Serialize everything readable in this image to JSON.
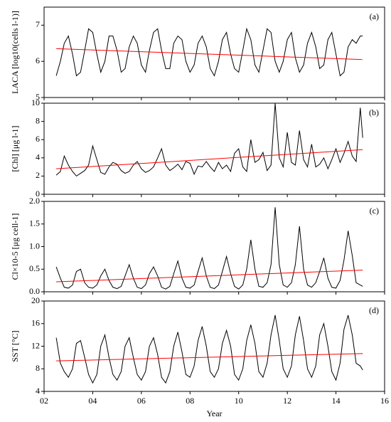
{
  "chart_data": [
    {
      "type": "line",
      "annotation": "(a)",
      "y_label": "LACA [log10(cells l-1)]",
      "x": [
        2.5,
        2.67,
        2.83,
        3,
        3.17,
        3.33,
        3.5,
        3.67,
        3.83,
        4,
        4.17,
        4.33,
        4.5,
        4.67,
        4.83,
        5,
        5.17,
        5.33,
        5.5,
        5.67,
        5.83,
        6,
        6.17,
        6.33,
        6.5,
        6.67,
        6.83,
        7,
        7.17,
        7.33,
        7.5,
        7.67,
        7.83,
        8,
        8.17,
        8.33,
        8.5,
        8.67,
        8.83,
        9,
        9.17,
        9.33,
        9.5,
        9.67,
        9.83,
        10,
        10.17,
        10.33,
        10.5,
        10.67,
        10.83,
        11,
        11.17,
        11.33,
        11.5,
        11.67,
        11.83,
        12,
        12.17,
        12.33,
        12.5,
        12.67,
        12.83,
        13,
        13.17,
        13.33,
        13.5,
        13.67,
        13.83,
        14,
        14.17,
        14.33,
        14.5,
        14.67,
        14.83,
        15,
        15.1
      ],
      "series": [
        {
          "color": "#000000",
          "values": [
            5.6,
            6.0,
            6.5,
            6.7,
            6.2,
            5.6,
            5.7,
            6.3,
            6.9,
            6.8,
            6.2,
            5.7,
            6.0,
            6.7,
            6.7,
            6.3,
            5.7,
            5.8,
            6.4,
            6.7,
            6.5,
            5.9,
            5.7,
            6.3,
            6.8,
            6.9,
            6.3,
            5.8,
            5.8,
            6.5,
            6.7,
            6.6,
            6.0,
            5.7,
            5.9,
            6.5,
            6.7,
            6.4,
            5.8,
            5.6,
            6.0,
            6.6,
            6.8,
            6.2,
            5.8,
            5.7,
            6.3,
            6.9,
            6.6,
            5.9,
            5.7,
            6.3,
            6.9,
            6.8,
            6.0,
            5.7,
            6.0,
            6.6,
            6.8,
            6.1,
            5.7,
            5.9,
            6.5,
            6.8,
            6.4,
            5.8,
            5.9,
            6.6,
            6.8,
            6.2,
            5.6,
            5.7,
            6.4,
            6.6,
            6.5,
            6.7,
            6.7
          ]
        },
        {
          "color": "#ff0000",
          "x": [
            2.5,
            15.1
          ],
          "values": [
            6.35,
            6.05
          ]
        }
      ],
      "xlim": [
        2,
        16
      ],
      "xticks": [
        2,
        4,
        6,
        8,
        10,
        12,
        14,
        16
      ],
      "ylim": [
        5,
        7.5
      ],
      "yticks": [
        5,
        6,
        7
      ]
    },
    {
      "type": "line",
      "annotation": "(b)",
      "y_label": "[Chl] [μg l-1]",
      "x": [
        2.5,
        2.67,
        2.83,
        3,
        3.17,
        3.33,
        3.5,
        3.67,
        3.83,
        4,
        4.17,
        4.33,
        4.5,
        4.67,
        4.83,
        5,
        5.17,
        5.33,
        5.5,
        5.67,
        5.83,
        6,
        6.17,
        6.33,
        6.5,
        6.67,
        6.83,
        7,
        7.17,
        7.33,
        7.5,
        7.67,
        7.83,
        8,
        8.17,
        8.33,
        8.5,
        8.67,
        8.83,
        9,
        9.17,
        9.33,
        9.5,
        9.67,
        9.83,
        10,
        10.17,
        10.33,
        10.5,
        10.67,
        10.83,
        11,
        11.17,
        11.33,
        11.5,
        11.67,
        11.83,
        12,
        12.17,
        12.33,
        12.5,
        12.67,
        12.83,
        13,
        13.17,
        13.33,
        13.5,
        13.67,
        13.83,
        14,
        14.17,
        14.33,
        14.5,
        14.67,
        14.83,
        15,
        15.1
      ],
      "series": [
        {
          "color": "#000000",
          "values": [
            2.1,
            2.5,
            4.2,
            3.2,
            2.5,
            2.0,
            2.3,
            2.6,
            3.2,
            5.3,
            3.8,
            2.4,
            2.2,
            3.0,
            3.5,
            3.3,
            2.6,
            2.3,
            2.5,
            3.2,
            3.6,
            2.8,
            2.4,
            2.6,
            3.0,
            4.0,
            5.0,
            3.2,
            2.6,
            2.9,
            3.3,
            2.7,
            3.6,
            3.4,
            2.2,
            3.1,
            3.0,
            3.6,
            3.0,
            2.5,
            3.5,
            2.8,
            3.2,
            2.5,
            4.5,
            5.0,
            3.0,
            2.5,
            6.0,
            3.5,
            3.8,
            4.6,
            2.6,
            3.2,
            10.0,
            4.0,
            3.0,
            6.8,
            3.5,
            3.2,
            7.0,
            3.8,
            3.0,
            5.5,
            3.0,
            3.3,
            4.0,
            2.8,
            3.8,
            5.0,
            3.5,
            4.5,
            5.8,
            4.2,
            3.6,
            9.5,
            6.2
          ]
        },
        {
          "color": "#ff0000",
          "x": [
            2.5,
            15.1
          ],
          "values": [
            2.8,
            4.9
          ]
        }
      ],
      "xlim": [
        2,
        16
      ],
      "xticks": [
        2,
        4,
        6,
        8,
        10,
        12,
        14,
        16
      ],
      "ylim": [
        0,
        10
      ],
      "yticks": [
        0,
        2,
        4,
        6,
        8,
        10
      ]
    },
    {
      "type": "line",
      "annotation": "(c)",
      "y_label": "Cl×10-5 [μg cell-1]",
      "x": [
        2.5,
        2.67,
        2.83,
        3,
        3.17,
        3.33,
        3.5,
        3.67,
        3.83,
        4,
        4.17,
        4.33,
        4.5,
        4.67,
        4.83,
        5,
        5.17,
        5.33,
        5.5,
        5.67,
        5.83,
        6,
        6.17,
        6.33,
        6.5,
        6.67,
        6.83,
        7,
        7.17,
        7.33,
        7.5,
        7.67,
        7.83,
        8,
        8.17,
        8.33,
        8.5,
        8.67,
        8.83,
        9,
        9.17,
        9.33,
        9.5,
        9.67,
        9.83,
        10,
        10.17,
        10.33,
        10.5,
        10.67,
        10.83,
        11,
        11.17,
        11.33,
        11.5,
        11.67,
        11.83,
        12,
        12.17,
        12.33,
        12.5,
        12.67,
        12.83,
        13,
        13.17,
        13.33,
        13.5,
        13.67,
        13.83,
        14,
        14.17,
        14.33,
        14.5,
        14.67,
        14.83,
        15,
        15.1
      ],
      "series": [
        {
          "color": "#000000",
          "values": [
            0.55,
            0.3,
            0.1,
            0.08,
            0.15,
            0.45,
            0.5,
            0.2,
            0.1,
            0.08,
            0.15,
            0.35,
            0.5,
            0.25,
            0.1,
            0.07,
            0.12,
            0.35,
            0.6,
            0.3,
            0.1,
            0.07,
            0.15,
            0.4,
            0.55,
            0.35,
            0.1,
            0.06,
            0.12,
            0.4,
            0.68,
            0.3,
            0.1,
            0.08,
            0.15,
            0.45,
            0.75,
            0.35,
            0.1,
            0.07,
            0.15,
            0.45,
            0.78,
            0.4,
            0.12,
            0.06,
            0.15,
            0.5,
            1.15,
            0.5,
            0.12,
            0.1,
            0.2,
            0.6,
            1.87,
            0.6,
            0.15,
            0.1,
            0.2,
            0.6,
            1.45,
            0.5,
            0.15,
            0.1,
            0.2,
            0.45,
            0.75,
            0.3,
            0.1,
            0.08,
            0.25,
            0.7,
            1.35,
            0.8,
            0.2,
            0.15,
            0.12
          ]
        },
        {
          "color": "#ff0000",
          "x": [
            2.5,
            15.1
          ],
          "values": [
            0.22,
            0.48
          ]
        }
      ],
      "xlim": [
        2,
        16
      ],
      "xticks": [
        2,
        4,
        6,
        8,
        10,
        12,
        14,
        16
      ],
      "ylim": [
        0,
        2
      ],
      "yticks": [
        {
          "value": 0,
          "label": "0.0"
        },
        {
          "value": 0.5,
          "label": "0.5"
        },
        {
          "value": 1,
          "label": "1.0"
        },
        {
          "value": 1.5,
          "label": "1.5"
        },
        {
          "value": 2,
          "label": "2.0"
        }
      ]
    },
    {
      "type": "line",
      "annotation": "(d)",
      "y_label": "SST [°C]",
      "x_label": "Year",
      "x": [
        2.5,
        2.67,
        2.83,
        3,
        3.17,
        3.33,
        3.5,
        3.67,
        3.83,
        4,
        4.17,
        4.33,
        4.5,
        4.67,
        4.83,
        5,
        5.17,
        5.33,
        5.5,
        5.67,
        5.83,
        6,
        6.17,
        6.33,
        6.5,
        6.67,
        6.83,
        7,
        7.17,
        7.33,
        7.5,
        7.67,
        7.83,
        8,
        8.17,
        8.33,
        8.5,
        8.67,
        8.83,
        9,
        9.17,
        9.33,
        9.5,
        9.67,
        9.83,
        10,
        10.17,
        10.33,
        10.5,
        10.67,
        10.83,
        11,
        11.17,
        11.33,
        11.5,
        11.67,
        11.83,
        12,
        12.17,
        12.33,
        12.5,
        12.67,
        12.83,
        13,
        13.17,
        13.33,
        13.5,
        13.67,
        13.83,
        14,
        14.17,
        14.33,
        14.5,
        14.67,
        14.83,
        15,
        15.1
      ],
      "series": [
        {
          "color": "#000000",
          "values": [
            13.5,
            9,
            7.5,
            6.5,
            8,
            12.5,
            13,
            10,
            7,
            5.5,
            7,
            12,
            14,
            10,
            7,
            6,
            7.5,
            12,
            13.5,
            10,
            7,
            6,
            7.5,
            12,
            13.5,
            10.5,
            6.5,
            5.5,
            7.5,
            12,
            14.5,
            11,
            7,
            6.5,
            8.5,
            13,
            15.5,
            12,
            7.5,
            6.5,
            8,
            12.5,
            14.8,
            12,
            7,
            6,
            8,
            13,
            15.8,
            12.5,
            7.5,
            6.5,
            9,
            14,
            17.5,
            13,
            8,
            6.5,
            8.5,
            14,
            17.3,
            13,
            8,
            6.5,
            8.5,
            14,
            16,
            12,
            7.5,
            6,
            9,
            15,
            17.5,
            14,
            9,
            8.5,
            7.8
          ]
        },
        {
          "color": "#ff0000",
          "x": [
            2.5,
            15.1
          ],
          "values": [
            9.4,
            10.7
          ]
        }
      ],
      "xlim": [
        2,
        16
      ],
      "xticks": [
        {
          "value": 2,
          "label": "02"
        },
        {
          "value": 4,
          "label": "04"
        },
        {
          "value": 6,
          "label": "06"
        },
        {
          "value": 8,
          "label": "08"
        },
        {
          "value": 10,
          "label": "10"
        },
        {
          "value": 12,
          "label": "12"
        },
        {
          "value": 14,
          "label": "14"
        },
        {
          "value": 16,
          "label": "16"
        }
      ],
      "ylim": [
        4,
        20
      ],
      "yticks": [
        4,
        8,
        12,
        16,
        20
      ]
    }
  ]
}
